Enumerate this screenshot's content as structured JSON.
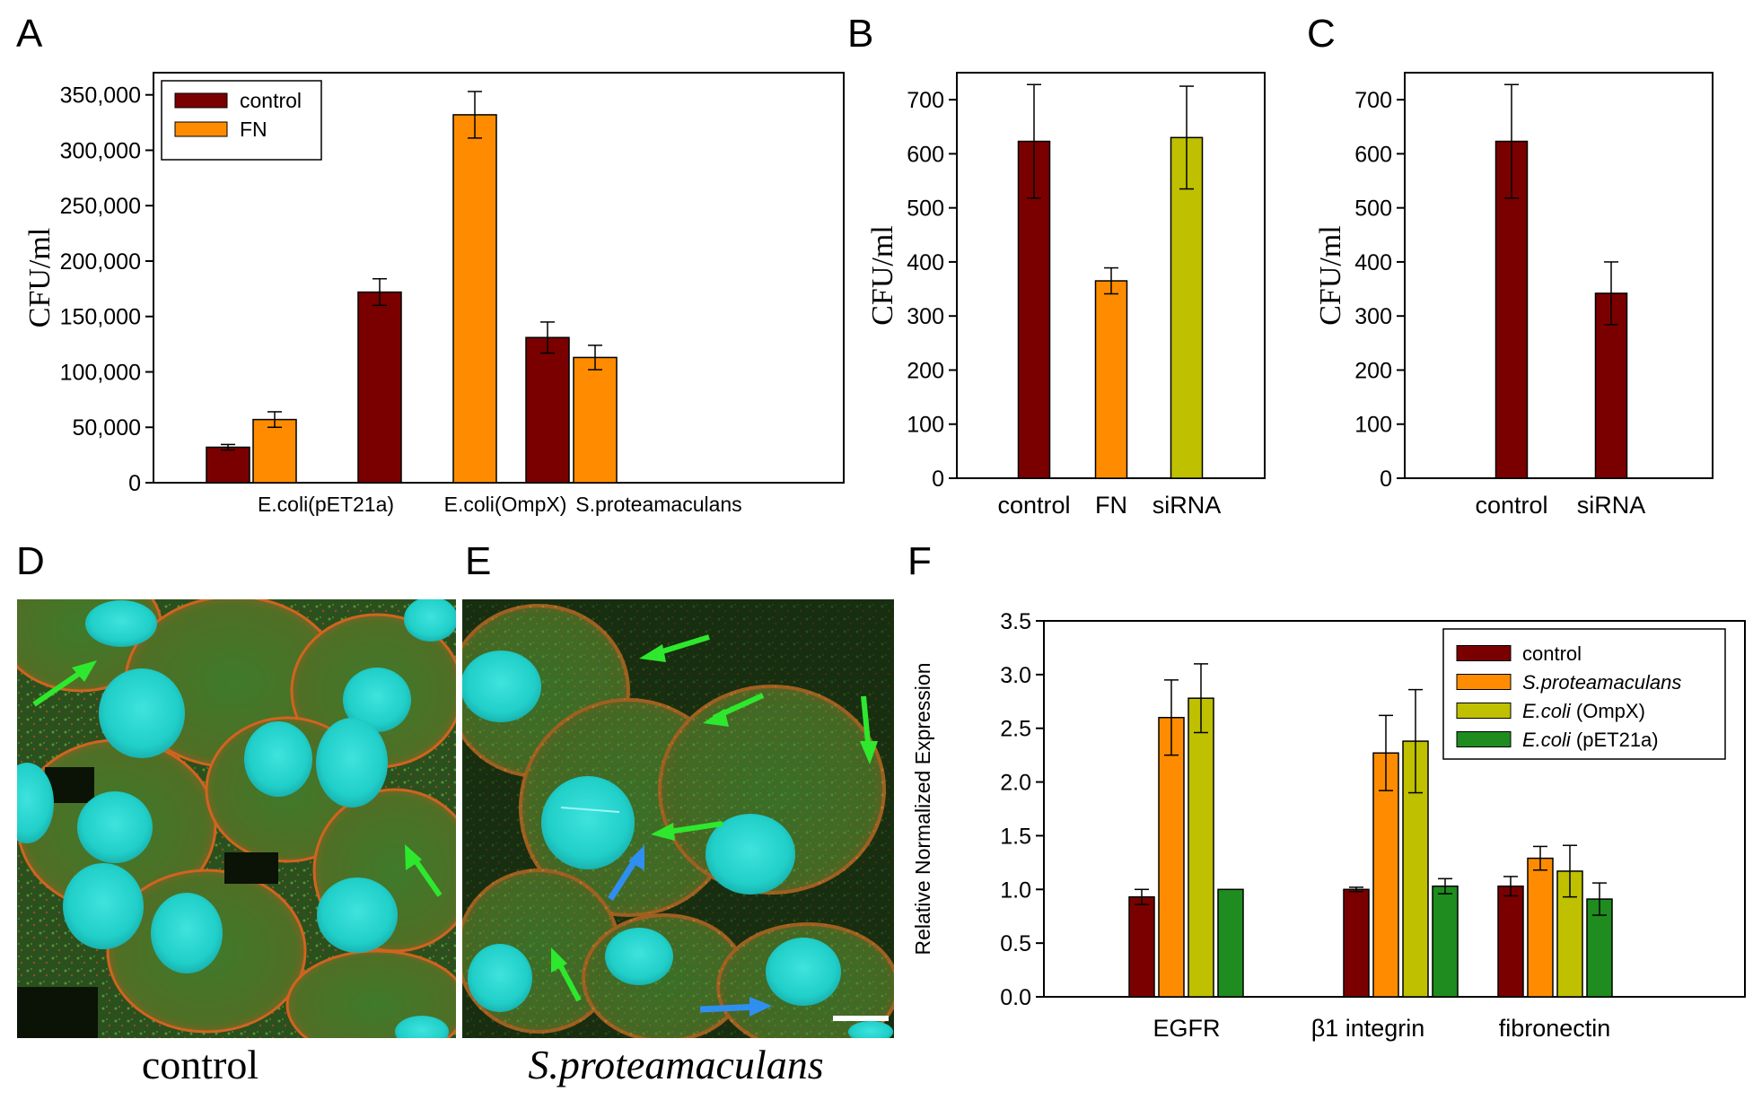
{
  "panels": {
    "A": "A",
    "B": "B",
    "C": "C",
    "D": "D",
    "E": "E",
    "F": "F"
  },
  "colors": {
    "control": "#7a0000",
    "FN": "#ff8c00",
    "siRNA": "#bfc000",
    "ompx": "#bfc000",
    "pet21a": "#1e8c1e",
    "green_arrow": "#2ee82e",
    "blue_arrow": "#2f8ff0"
  },
  "captions": {
    "D": "control",
    "E": "S.proteamaculans"
  },
  "chart_data": [
    {
      "id": "A",
      "type": "bar",
      "title": "",
      "ylabel": "CFU/ml",
      "xlabel": "",
      "ylim": [
        0,
        370000
      ],
      "yticks": [
        0,
        50000,
        100000,
        150000,
        200000,
        250000,
        300000,
        350000
      ],
      "ytick_labels": [
        "0",
        "50,000",
        "100,000",
        "150,000",
        "200,000",
        "250,000",
        "300,000",
        "350,000"
      ],
      "categories": [
        "E.coli(pET21a)",
        "E.coli(OmpX)",
        "S.proteamaculans"
      ],
      "series": [
        {
          "name": "control",
          "values": [
            32000,
            172000,
            131000
          ],
          "errors": [
            2500,
            12000,
            14000
          ]
        },
        {
          "name": "FN",
          "values": [
            57000,
            332000,
            113000
          ],
          "errors": [
            7000,
            21000,
            11000
          ]
        }
      ],
      "legend_location": "top-left"
    },
    {
      "id": "B",
      "type": "bar",
      "title": "",
      "ylabel": "CFU/ml",
      "xlabel": "",
      "ylim": [
        0,
        750
      ],
      "yticks": [
        0,
        100,
        200,
        300,
        400,
        500,
        600,
        700
      ],
      "ytick_labels": [
        "0",
        "100",
        "200",
        "300",
        "400",
        "500",
        "600",
        "700"
      ],
      "categories": [
        "control",
        "FN",
        "siRNA"
      ],
      "values": [
        623,
        365,
        630
      ],
      "errors": [
        105,
        24,
        95
      ]
    },
    {
      "id": "C",
      "type": "bar",
      "title": "",
      "ylabel": "CFU/ml",
      "xlabel": "",
      "ylim": [
        0,
        750
      ],
      "yticks": [
        0,
        100,
        200,
        300,
        400,
        500,
        600,
        700
      ],
      "ytick_labels": [
        "0",
        "100",
        "200",
        "300",
        "400",
        "500",
        "600",
        "700"
      ],
      "categories": [
        "control",
        "siRNA"
      ],
      "values": [
        623,
        342
      ],
      "errors": [
        105,
        58
      ]
    },
    {
      "id": "F",
      "type": "bar",
      "title": "",
      "ylabel": "Relative Normalized Expression",
      "xlabel": "",
      "ylim": [
        0,
        3.5
      ],
      "yticks": [
        0,
        0.5,
        1.0,
        1.5,
        2.0,
        2.5,
        3.0,
        3.5
      ],
      "ytick_labels": [
        "0.0",
        "0.5",
        "1.0",
        "1.5",
        "2.0",
        "2.5",
        "3.0",
        "3.5"
      ],
      "categories": [
        "EGFR",
        "β1 integrin",
        "fibronectin"
      ],
      "series": [
        {
          "name": "control",
          "values": [
            0.93,
            1.0,
            1.03
          ],
          "errors": [
            0.07,
            0.02,
            0.09
          ]
        },
        {
          "name": "S.proteamaculans",
          "values": [
            2.6,
            2.27,
            1.29
          ],
          "errors": [
            0.35,
            0.35,
            0.11
          ]
        },
        {
          "name": "E.coli (OmpX)",
          "values": [
            2.78,
            2.38,
            1.17
          ],
          "errors": [
            0.32,
            0.48,
            0.24
          ]
        },
        {
          "name": "E.coli (pET21a)",
          "values": [
            1.0,
            1.03,
            0.91
          ],
          "errors": [
            0.0,
            0.07,
            0.15
          ]
        }
      ],
      "legend_entries": [
        {
          "italic": "",
          "plain": "control"
        },
        {
          "italic": "S.proteamaculans",
          "plain": ""
        },
        {
          "italic": "E.coli",
          "plain": " (OmpX)"
        },
        {
          "italic": "E.coli",
          "plain": " (pET21a)"
        }
      ],
      "legend_location": "top-right"
    }
  ]
}
